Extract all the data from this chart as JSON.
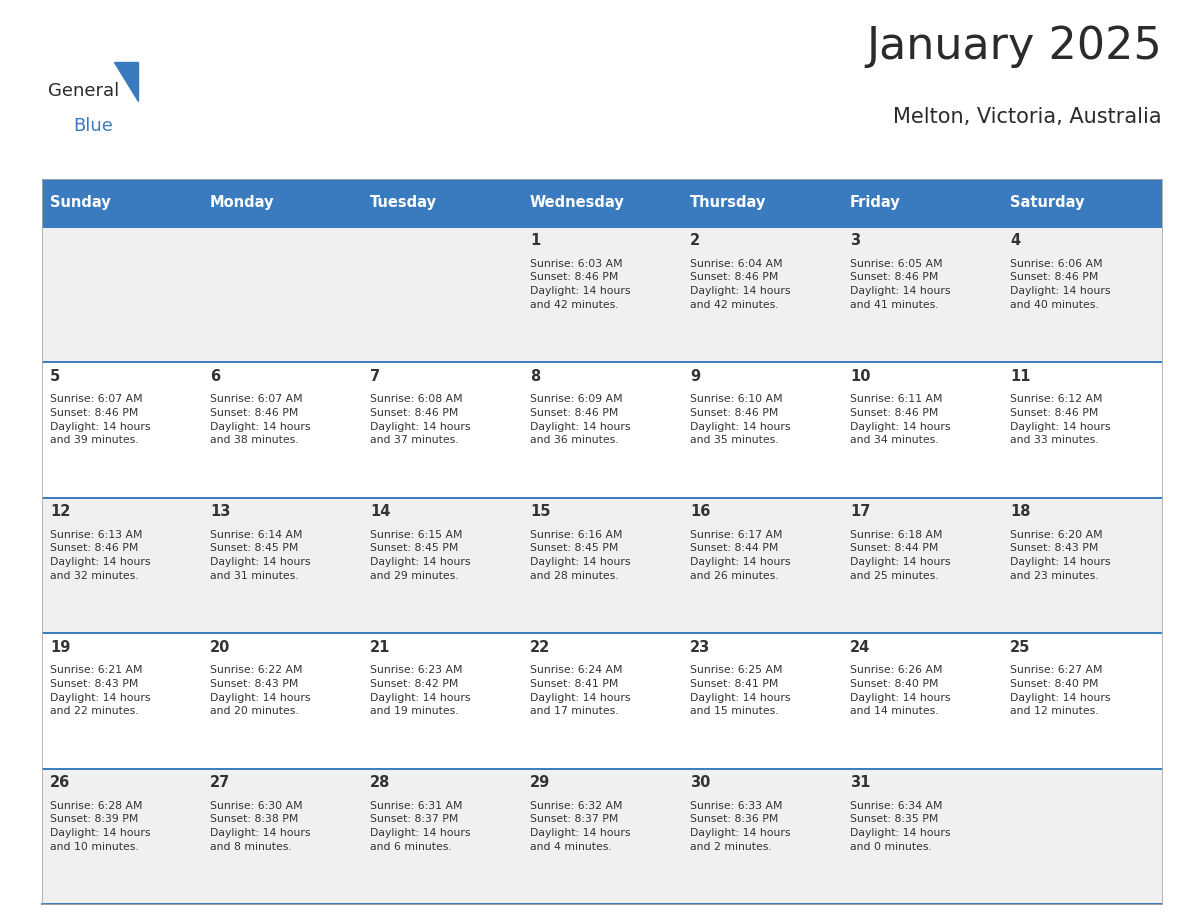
{
  "title": "January 2025",
  "subtitle": "Melton, Victoria, Australia",
  "header_bg": "#3a7bbf",
  "header_text_color": "#ffffff",
  "day_names": [
    "Sunday",
    "Monday",
    "Tuesday",
    "Wednesday",
    "Thursday",
    "Friday",
    "Saturday"
  ],
  "row_bg_even": "#f0f0f0",
  "row_bg_odd": "#ffffff",
  "cell_text_color": "#333333",
  "date_text_color": "#333333",
  "divider_color": "#3a7bbf",
  "calendar_data": [
    [
      {
        "day": null,
        "info": null
      },
      {
        "day": null,
        "info": null
      },
      {
        "day": null,
        "info": null
      },
      {
        "day": 1,
        "info": "Sunrise: 6:03 AM\nSunset: 8:46 PM\nDaylight: 14 hours\nand 42 minutes."
      },
      {
        "day": 2,
        "info": "Sunrise: 6:04 AM\nSunset: 8:46 PM\nDaylight: 14 hours\nand 42 minutes."
      },
      {
        "day": 3,
        "info": "Sunrise: 6:05 AM\nSunset: 8:46 PM\nDaylight: 14 hours\nand 41 minutes."
      },
      {
        "day": 4,
        "info": "Sunrise: 6:06 AM\nSunset: 8:46 PM\nDaylight: 14 hours\nand 40 minutes."
      }
    ],
    [
      {
        "day": 5,
        "info": "Sunrise: 6:07 AM\nSunset: 8:46 PM\nDaylight: 14 hours\nand 39 minutes."
      },
      {
        "day": 6,
        "info": "Sunrise: 6:07 AM\nSunset: 8:46 PM\nDaylight: 14 hours\nand 38 minutes."
      },
      {
        "day": 7,
        "info": "Sunrise: 6:08 AM\nSunset: 8:46 PM\nDaylight: 14 hours\nand 37 minutes."
      },
      {
        "day": 8,
        "info": "Sunrise: 6:09 AM\nSunset: 8:46 PM\nDaylight: 14 hours\nand 36 minutes."
      },
      {
        "day": 9,
        "info": "Sunrise: 6:10 AM\nSunset: 8:46 PM\nDaylight: 14 hours\nand 35 minutes."
      },
      {
        "day": 10,
        "info": "Sunrise: 6:11 AM\nSunset: 8:46 PM\nDaylight: 14 hours\nand 34 minutes."
      },
      {
        "day": 11,
        "info": "Sunrise: 6:12 AM\nSunset: 8:46 PM\nDaylight: 14 hours\nand 33 minutes."
      }
    ],
    [
      {
        "day": 12,
        "info": "Sunrise: 6:13 AM\nSunset: 8:46 PM\nDaylight: 14 hours\nand 32 minutes."
      },
      {
        "day": 13,
        "info": "Sunrise: 6:14 AM\nSunset: 8:45 PM\nDaylight: 14 hours\nand 31 minutes."
      },
      {
        "day": 14,
        "info": "Sunrise: 6:15 AM\nSunset: 8:45 PM\nDaylight: 14 hours\nand 29 minutes."
      },
      {
        "day": 15,
        "info": "Sunrise: 6:16 AM\nSunset: 8:45 PM\nDaylight: 14 hours\nand 28 minutes."
      },
      {
        "day": 16,
        "info": "Sunrise: 6:17 AM\nSunset: 8:44 PM\nDaylight: 14 hours\nand 26 minutes."
      },
      {
        "day": 17,
        "info": "Sunrise: 6:18 AM\nSunset: 8:44 PM\nDaylight: 14 hours\nand 25 minutes."
      },
      {
        "day": 18,
        "info": "Sunrise: 6:20 AM\nSunset: 8:43 PM\nDaylight: 14 hours\nand 23 minutes."
      }
    ],
    [
      {
        "day": 19,
        "info": "Sunrise: 6:21 AM\nSunset: 8:43 PM\nDaylight: 14 hours\nand 22 minutes."
      },
      {
        "day": 20,
        "info": "Sunrise: 6:22 AM\nSunset: 8:43 PM\nDaylight: 14 hours\nand 20 minutes."
      },
      {
        "day": 21,
        "info": "Sunrise: 6:23 AM\nSunset: 8:42 PM\nDaylight: 14 hours\nand 19 minutes."
      },
      {
        "day": 22,
        "info": "Sunrise: 6:24 AM\nSunset: 8:41 PM\nDaylight: 14 hours\nand 17 minutes."
      },
      {
        "day": 23,
        "info": "Sunrise: 6:25 AM\nSunset: 8:41 PM\nDaylight: 14 hours\nand 15 minutes."
      },
      {
        "day": 24,
        "info": "Sunrise: 6:26 AM\nSunset: 8:40 PM\nDaylight: 14 hours\nand 14 minutes."
      },
      {
        "day": 25,
        "info": "Sunrise: 6:27 AM\nSunset: 8:40 PM\nDaylight: 14 hours\nand 12 minutes."
      }
    ],
    [
      {
        "day": 26,
        "info": "Sunrise: 6:28 AM\nSunset: 8:39 PM\nDaylight: 14 hours\nand 10 minutes."
      },
      {
        "day": 27,
        "info": "Sunrise: 6:30 AM\nSunset: 8:38 PM\nDaylight: 14 hours\nand 8 minutes."
      },
      {
        "day": 28,
        "info": "Sunrise: 6:31 AM\nSunset: 8:37 PM\nDaylight: 14 hours\nand 6 minutes."
      },
      {
        "day": 29,
        "info": "Sunrise: 6:32 AM\nSunset: 8:37 PM\nDaylight: 14 hours\nand 4 minutes."
      },
      {
        "day": 30,
        "info": "Sunrise: 6:33 AM\nSunset: 8:36 PM\nDaylight: 14 hours\nand 2 minutes."
      },
      {
        "day": 31,
        "info": "Sunrise: 6:34 AM\nSunset: 8:35 PM\nDaylight: 14 hours\nand 0 minutes."
      },
      {
        "day": null,
        "info": null
      }
    ]
  ],
  "logo_text_general": "General",
  "logo_text_blue": "Blue",
  "logo_triangle_color": "#3a7bbf",
  "fig_width": 11.88,
  "fig_height": 9.18,
  "dpi": 100
}
